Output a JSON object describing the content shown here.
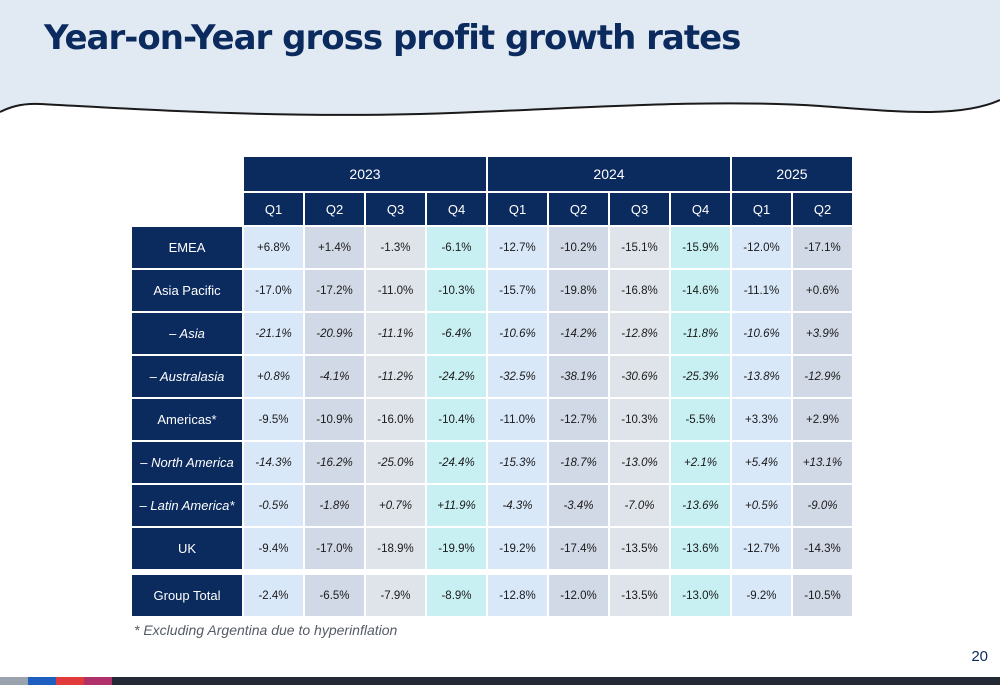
{
  "title": "Year-on-Year gross profit growth rates",
  "years": [
    {
      "label": "2023",
      "span": 4
    },
    {
      "label": "2024",
      "span": 4
    },
    {
      "label": "2025",
      "span": 2
    }
  ],
  "quarters": [
    "Q1",
    "Q2",
    "Q3",
    "Q4",
    "Q1",
    "Q2",
    "Q3",
    "Q4",
    "Q1",
    "Q2"
  ],
  "rows": [
    {
      "label": "EMEA",
      "italic": false,
      "values": [
        "+6.8%",
        "+1.4%",
        "-1.3%",
        "-6.1%",
        "-12.7%",
        "-10.2%",
        "-15.1%",
        "-15.9%",
        "-12.0%",
        "-17.1%"
      ]
    },
    {
      "label": "Asia Pacific",
      "italic": false,
      "values": [
        "-17.0%",
        "-17.2%",
        "-11.0%",
        "-10.3%",
        "-15.7%",
        "-19.8%",
        "-16.8%",
        "-14.6%",
        "-11.1%",
        "+0.6%"
      ]
    },
    {
      "label": "– Asia",
      "italic": true,
      "values": [
        "-21.1%",
        "-20.9%",
        "-11.1%",
        "-6.4%",
        "-10.6%",
        "-14.2%",
        "-12.8%",
        "-11.8%",
        "-10.6%",
        "+3.9%"
      ]
    },
    {
      "label": "– Australasia",
      "italic": true,
      "values": [
        "+0.8%",
        "-4.1%",
        "-11.2%",
        "-24.2%",
        "-32.5%",
        "-38.1%",
        "-30.6%",
        "-25.3%",
        "-13.8%",
        "-12.9%"
      ]
    },
    {
      "label": "Americas*",
      "italic": false,
      "values": [
        "-9.5%",
        "-10.9%",
        "-16.0%",
        "-10.4%",
        "-11.0%",
        "-12.7%",
        "-10.3%",
        "-5.5%",
        "+3.3%",
        "+2.9%"
      ]
    },
    {
      "label": "– North America",
      "italic": true,
      "values": [
        "-14.3%",
        "-16.2%",
        "-25.0%",
        "-24.4%",
        "-15.3%",
        "-18.7%",
        "-13.0%",
        "+2.1%",
        "+5.4%",
        "+13.1%"
      ]
    },
    {
      "label": "– Latin America*",
      "italic": true,
      "values": [
        "-0.5%",
        "-1.8%",
        "+0.7%",
        "+11.9%",
        "-4.3%",
        "-3.4%",
        "-7.0%",
        "-13.6%",
        "+0.5%",
        "-9.0%"
      ]
    },
    {
      "label": "UK",
      "italic": false,
      "values": [
        "-9.4%",
        "-17.0%",
        "-18.9%",
        "-19.9%",
        "-19.2%",
        "-17.4%",
        "-13.5%",
        "-13.6%",
        "-12.7%",
        "-14.3%"
      ]
    }
  ],
  "total": {
    "label": "Group Total",
    "values": [
      "-2.4%",
      "-6.5%",
      "-7.9%",
      "-8.9%",
      "-12.8%",
      "-12.0%",
      "-13.5%",
      "-13.0%",
      "-9.2%",
      "-10.5%"
    ]
  },
  "footnote": "* Excluding Argentina due to hyperinflation",
  "page_number": "20",
  "colors": {
    "navy": "#0b2a5e",
    "q1_cell": "#d9e8f9",
    "q2_cell": "#d1d8e6",
    "q3_cell": "#dfe4ea",
    "q4_cell": "#c8f0f3",
    "footer_bar": "#232a35",
    "accent_blue": "#1f5fbf",
    "accent_red": "#e03a3a",
    "accent_magenta": "#b0306a"
  }
}
